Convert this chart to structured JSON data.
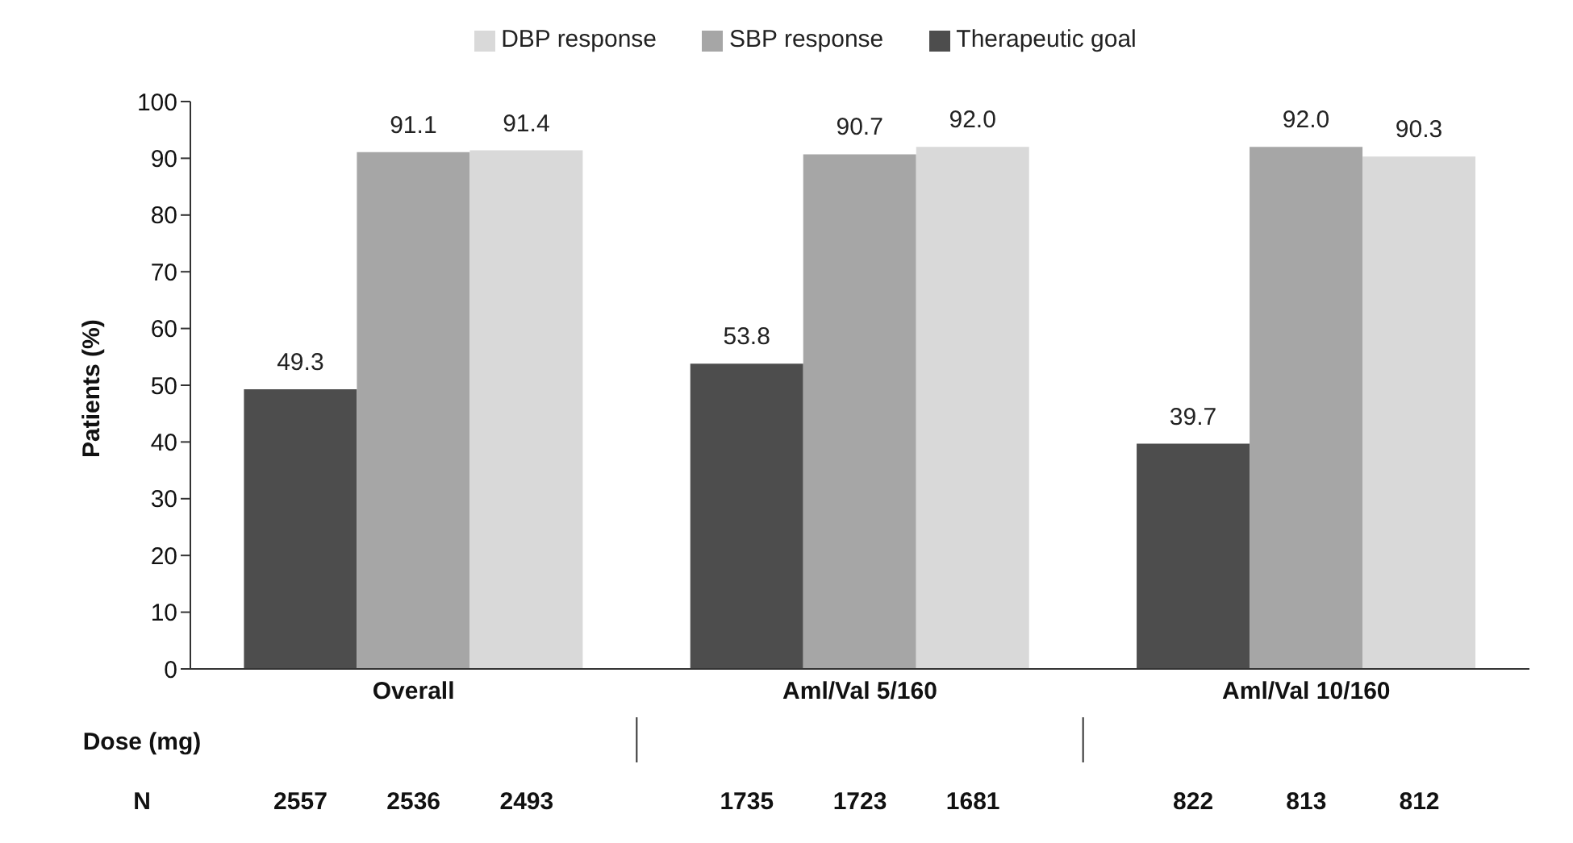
{
  "chart_data": {
    "type": "bar",
    "ylabel": "Patients (%)",
    "xlabel": "Dose (mg)",
    "categories": [
      "Overall",
      "Aml/Val 5/160",
      "Aml/Val 10/160"
    ],
    "series": [
      {
        "name": "Therapeutic goal",
        "color": "#4d4d4d",
        "values": [
          49.3,
          53.8,
          39.7
        ],
        "value_labels": [
          "49.3",
          "53.8",
          "39.7"
        ]
      },
      {
        "name": "SBP response",
        "color": "#a6a6a6",
        "values": [
          91.1,
          90.7,
          92.0
        ],
        "value_labels": [
          "91.1",
          "90.7",
          "92.0"
        ]
      },
      {
        "name": "DBP response",
        "color": "#d9d9d9",
        "values": [
          91.4,
          92.0,
          90.3
        ],
        "value_labels": [
          "91.4",
          "92.0",
          "90.3"
        ]
      }
    ],
    "ylim": [
      0,
      100
    ],
    "yticks": [
      0,
      10,
      20,
      30,
      40,
      50,
      60,
      70,
      80,
      90,
      100
    ],
    "grid": false,
    "legend": "top",
    "annotations": [
      "N",
      "2557",
      "2536",
      "2493",
      "1735",
      "1723",
      "1681",
      "822",
      "813",
      "812"
    ]
  }
}
